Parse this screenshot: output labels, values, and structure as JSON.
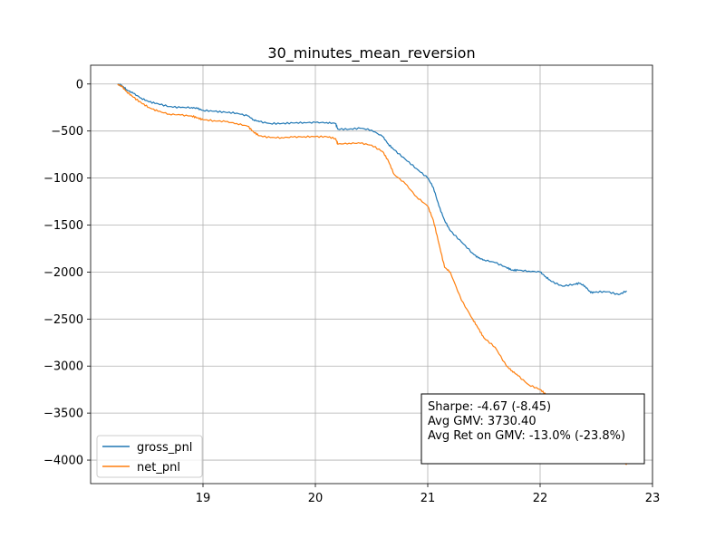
{
  "chart_data": {
    "type": "line",
    "title": "30_minutes_mean_reversion",
    "xlabel": "",
    "ylabel": "",
    "xlim": [
      18.0,
      23.0
    ],
    "ylim": [
      -4250,
      200
    ],
    "xticks": [
      19,
      20,
      21,
      22,
      23
    ],
    "yticks": [
      0,
      -500,
      -1000,
      -1500,
      -2000,
      -2500,
      -3000,
      -3500,
      -4000
    ],
    "grid": true,
    "legend_position": "lower-left",
    "series": [
      {
        "name": "gross_pnl",
        "color": "#1f77b4",
        "x": [
          18.24,
          18.28,
          18.32,
          18.38,
          18.45,
          18.52,
          18.6,
          18.7,
          18.8,
          18.9,
          18.95,
          19.0,
          19.1,
          19.2,
          19.3,
          19.4,
          19.45,
          19.5,
          19.6,
          19.7,
          19.8,
          19.9,
          20.0,
          20.1,
          20.18,
          20.2,
          20.3,
          20.4,
          20.5,
          20.6,
          20.65,
          20.7,
          20.8,
          20.9,
          21.0,
          21.05,
          21.1,
          21.15,
          21.2,
          21.3,
          21.4,
          21.45,
          21.5,
          21.6,
          21.7,
          21.75,
          21.8,
          21.9,
          22.0,
          22.05,
          22.1,
          22.2,
          22.3,
          22.35,
          22.4,
          22.45,
          22.5,
          22.6,
          22.7,
          22.77
        ],
        "y": [
          0,
          -20,
          -60,
          -100,
          -150,
          -190,
          -210,
          -240,
          -250,
          -250,
          -260,
          -280,
          -290,
          -300,
          -310,
          -340,
          -380,
          -400,
          -420,
          -420,
          -415,
          -410,
          -410,
          -410,
          -420,
          -480,
          -480,
          -470,
          -490,
          -560,
          -640,
          -700,
          -800,
          -900,
          -1000,
          -1100,
          -1300,
          -1450,
          -1560,
          -1680,
          -1800,
          -1850,
          -1870,
          -1900,
          -1950,
          -1980,
          -1980,
          -1990,
          -2000,
          -2050,
          -2100,
          -2150,
          -2130,
          -2120,
          -2150,
          -2220,
          -2210,
          -2210,
          -2240,
          -2200
        ]
      },
      {
        "name": "net_pnl",
        "color": "#ff7f0e",
        "x": [
          18.24,
          18.28,
          18.32,
          18.38,
          18.45,
          18.52,
          18.6,
          18.7,
          18.8,
          18.9,
          18.95,
          19.0,
          19.1,
          19.2,
          19.3,
          19.4,
          19.45,
          19.5,
          19.6,
          19.7,
          19.8,
          19.9,
          20.0,
          20.1,
          20.18,
          20.2,
          20.3,
          20.4,
          20.5,
          20.6,
          20.65,
          20.7,
          20.8,
          20.9,
          21.0,
          21.05,
          21.1,
          21.15,
          21.2,
          21.3,
          21.4,
          21.45,
          21.5,
          21.6,
          21.7,
          21.75,
          21.8,
          21.9,
          22.0,
          22.05,
          22.1,
          22.2,
          22.3,
          22.35,
          22.4,
          22.45,
          22.5,
          22.6,
          22.7,
          22.77
        ],
        "y": [
          0,
          -30,
          -80,
          -140,
          -200,
          -250,
          -290,
          -320,
          -330,
          -340,
          -360,
          -380,
          -390,
          -400,
          -420,
          -450,
          -510,
          -550,
          -570,
          -570,
          -565,
          -560,
          -560,
          -560,
          -580,
          -640,
          -630,
          -630,
          -650,
          -720,
          -820,
          -960,
          -1060,
          -1200,
          -1300,
          -1450,
          -1700,
          -1950,
          -2000,
          -2300,
          -2500,
          -2600,
          -2700,
          -2800,
          -3000,
          -3050,
          -3100,
          -3200,
          -3250,
          -3300,
          -3400,
          -3500,
          -3600,
          -3650,
          -3700,
          -3800,
          -3850,
          -3900,
          -3950,
          -4050
        ]
      }
    ],
    "annotation": {
      "lines": [
        "Sharpe: -4.67 (-8.45)",
        "Avg GMV: 3730.40",
        "Avg Ret on GMV: -13.0% (-23.8%)"
      ]
    }
  }
}
